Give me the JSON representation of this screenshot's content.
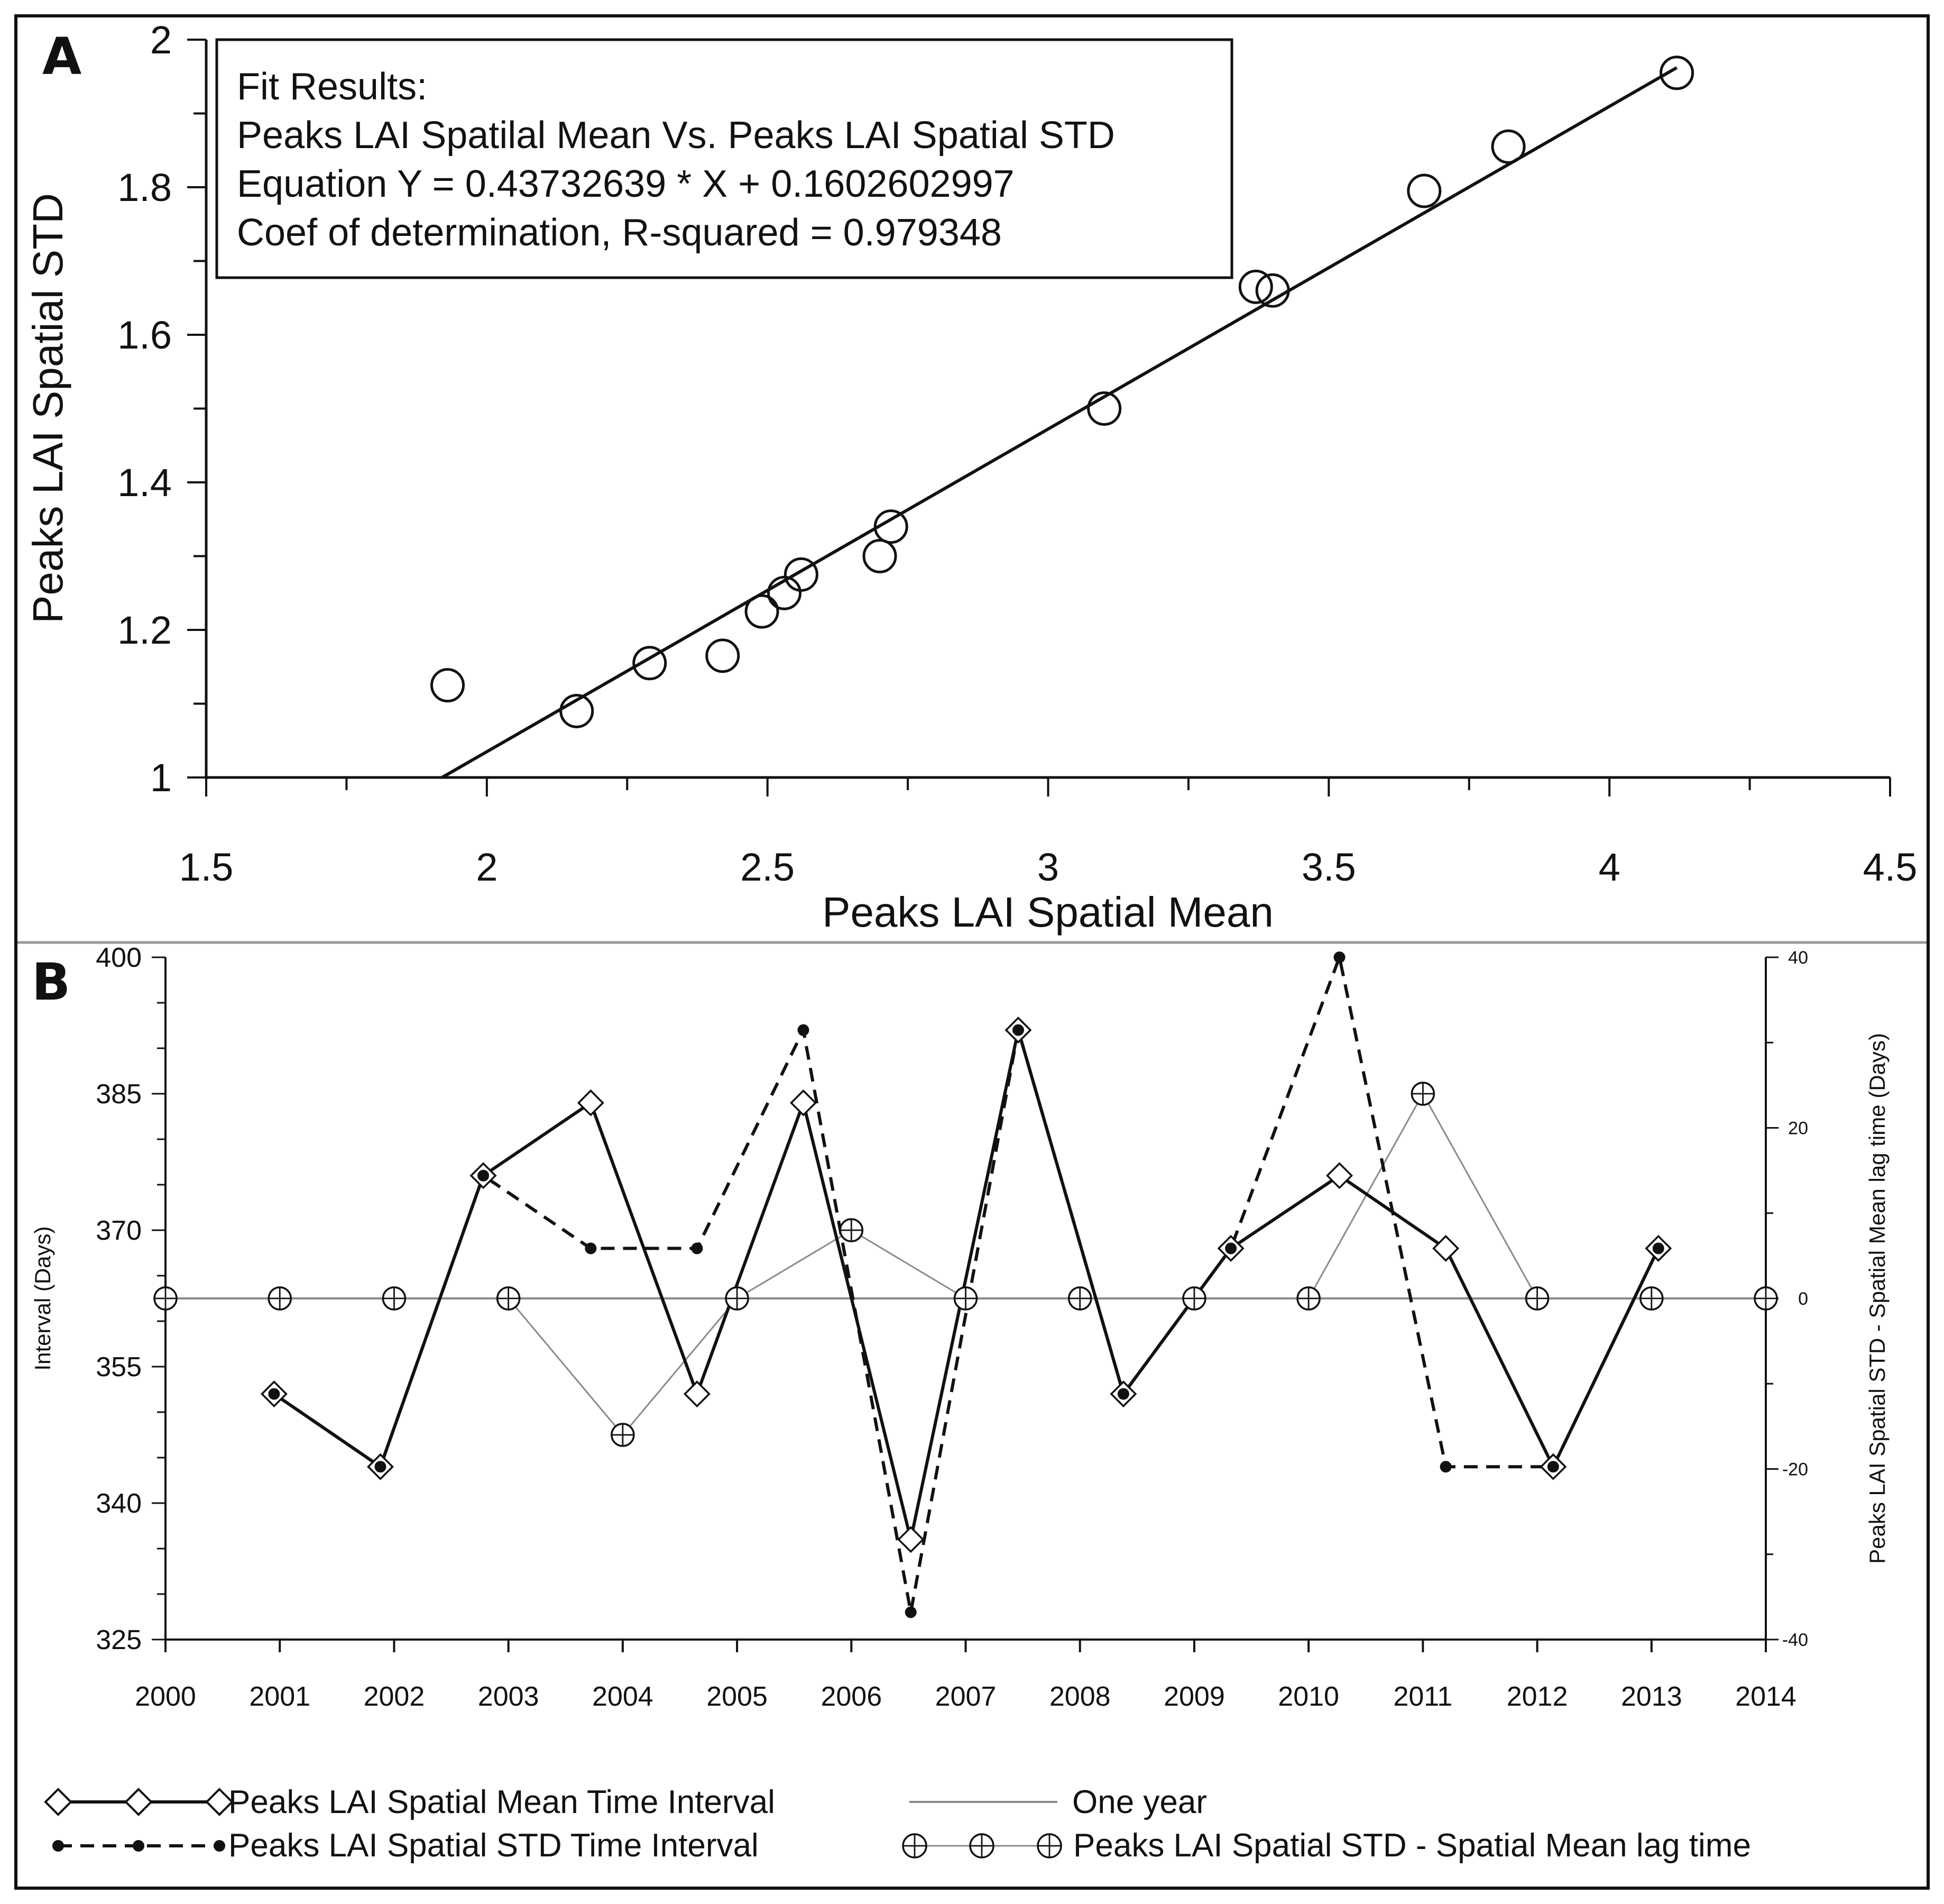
{
  "colors": {
    "line": "#111111",
    "gray_line": "#8a8a8a",
    "background": "#ffffff"
  },
  "chart_data": [
    {
      "panel": "A",
      "type": "scatter",
      "xlabel": "Peaks LAI Spatial Mean",
      "ylabel": "Peaks LAI Spatial STD",
      "xlim": [
        1.5,
        4.5
      ],
      "ylim": [
        1,
        2
      ],
      "xticks": [
        "1.5",
        "2",
        "2.5",
        "3",
        "3.5",
        "4",
        "4.5"
      ],
      "yticks": [
        "1",
        "1.2",
        "1.4",
        "1.6",
        "1.8",
        "2"
      ],
      "points": [
        {
          "x": 1.93,
          "y": 1.125
        },
        {
          "x": 2.16,
          "y": 1.09
        },
        {
          "x": 2.29,
          "y": 1.155
        },
        {
          "x": 2.42,
          "y": 1.165
        },
        {
          "x": 2.49,
          "y": 1.225
        },
        {
          "x": 2.53,
          "y": 1.25
        },
        {
          "x": 2.56,
          "y": 1.275
        },
        {
          "x": 2.7,
          "y": 1.3
        },
        {
          "x": 2.72,
          "y": 1.34
        },
        {
          "x": 3.1,
          "y": 1.5
        },
        {
          "x": 3.37,
          "y": 1.665
        },
        {
          "x": 3.4,
          "y": 1.66
        },
        {
          "x": 3.67,
          "y": 1.795
        },
        {
          "x": 3.82,
          "y": 1.855
        },
        {
          "x": 4.12,
          "y": 1.955
        }
      ],
      "fit_line": {
        "slope": 0.43732639,
        "intercept": 0.1602602997,
        "x_range": [
          1.92,
          4.12
        ]
      },
      "fit_results": [
        "Fit Results:",
        "Peaks LAI Spatilal Mean Vs. Peaks LAI Spatial STD",
        "Equation Y = 0.43732639 * X + 0.1602602997",
        "Coef of determination, R-squared = 0.979348"
      ]
    },
    {
      "panel": "B",
      "type": "line",
      "ylabel_left": "Interval (Days)",
      "ylabel_right": "Peaks LAI Spatial STD - Spatial Mean lag time (Days)",
      "xlim": [
        2000,
        2014
      ],
      "ylim_left": [
        325,
        400
      ],
      "ylim_right": [
        -40,
        40
      ],
      "xticks": [
        "2000",
        "2001",
        "2002",
        "2003",
        "2004",
        "2005",
        "2006",
        "2007",
        "2008",
        "2009",
        "2010",
        "2011",
        "2012",
        "2013",
        "2014"
      ],
      "yticks_left": [
        "325",
        "340",
        "355",
        "370",
        "385",
        "400"
      ],
      "yticks_right": [
        "-40",
        "-20",
        "0",
        "20",
        "40"
      ],
      "series": [
        {
          "name": "Peaks LAI Spatial Mean Time Interval",
          "axis": "left",
          "x": [
            2000.95,
            2001.88,
            2002.78,
            2003.72,
            2004.65,
            2005.58,
            2006.52,
            2007.46,
            2008.38,
            2009.32,
            2010.27,
            2011.2,
            2012.14,
            2013.06
          ],
          "y": [
            352,
            344,
            376,
            384,
            352,
            384,
            336,
            392,
            352,
            368,
            376,
            368,
            344,
            368
          ]
        },
        {
          "name": "Peaks LAI Spatial STD Time Interval",
          "axis": "left",
          "x": [
            2000.95,
            2001.88,
            2002.78,
            2003.72,
            2004.65,
            2005.58,
            2006.52,
            2007.46,
            2008.38,
            2009.32,
            2010.27,
            2011.2,
            2012.14,
            2013.06
          ],
          "y": [
            352,
            344,
            376,
            368,
            368,
            392,
            328,
            392,
            352,
            368,
            400,
            344,
            344,
            368
          ]
        },
        {
          "name": "One year",
          "axis": "right",
          "x": [
            2000,
            2014
          ],
          "y": [
            0,
            0
          ]
        },
        {
          "name": "Peaks LAI Spatial STD - Spatial Mean lag time",
          "axis": "right",
          "x": [
            2000,
            2001,
            2002,
            2003,
            2004,
            2005,
            2006,
            2007,
            2008,
            2009,
            2010,
            2011,
            2012,
            2013,
            2014
          ],
          "y": [
            0,
            0,
            0,
            0,
            -16,
            0,
            8,
            0,
            0,
            0,
            0,
            24,
            0,
            0,
            0
          ]
        }
      ],
      "legend": [
        "Peaks LAI Spatial Mean Time Interval",
        "One year",
        "Peaks LAI Spatial STD Time Interval",
        "Peaks LAI Spatial STD - Spatial Mean lag time"
      ]
    }
  ]
}
